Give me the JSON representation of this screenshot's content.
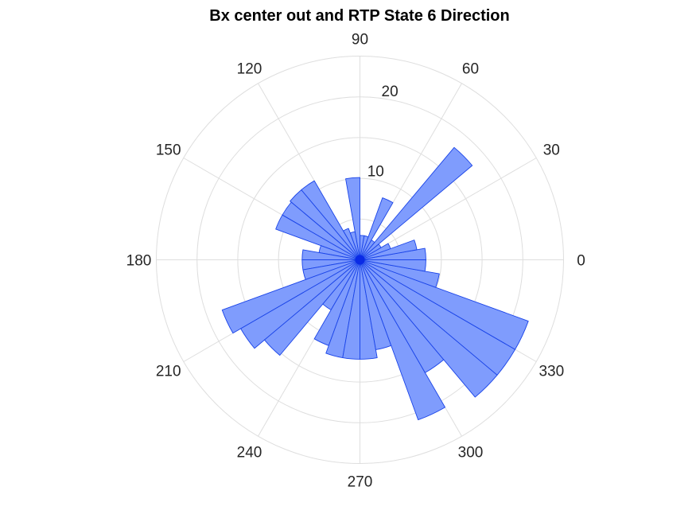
{
  "chart_data": {
    "type": "polar-histogram",
    "title": "Bx  center out and RTP State 6 Direction",
    "angle_unit": "degrees",
    "bin_width_deg": 10,
    "angle_ticks": [
      "0",
      "30",
      "60",
      "90",
      "120",
      "150",
      "180",
      "210",
      "240",
      "270",
      "300",
      "330"
    ],
    "radial_ticks": [
      "10",
      "20"
    ],
    "rlim": [
      0,
      25
    ],
    "grid": true,
    "bar_fill": "#7f9cfd",
    "bar_edge": "#1a44e8",
    "center_dot": "#0a2ae6",
    "grid_color": "#dedede",
    "bins": [
      {
        "start": 0,
        "end": 10,
        "value": 8.1
      },
      {
        "start": 10,
        "end": 20,
        "value": 7.1
      },
      {
        "start": 20,
        "end": 30,
        "value": 4.0
      },
      {
        "start": 30,
        "end": 40,
        "value": 3.0
      },
      {
        "start": 40,
        "end": 50,
        "value": 18.0
      },
      {
        "start": 50,
        "end": 60,
        "value": 2.8
      },
      {
        "start": 60,
        "end": 70,
        "value": 8.1
      },
      {
        "start": 70,
        "end": 80,
        "value": 3.0
      },
      {
        "start": 80,
        "end": 90,
        "value": 3.0
      },
      {
        "start": 90,
        "end": 100,
        "value": 10.1
      },
      {
        "start": 100,
        "end": 110,
        "value": 3.5
      },
      {
        "start": 110,
        "end": 120,
        "value": 4.1
      },
      {
        "start": 120,
        "end": 130,
        "value": 11.2
      },
      {
        "start": 130,
        "end": 140,
        "value": 11.2
      },
      {
        "start": 140,
        "end": 150,
        "value": 11.0
      },
      {
        "start": 150,
        "end": 160,
        "value": 11.0
      },
      {
        "start": 160,
        "end": 170,
        "value": 5.1
      },
      {
        "start": 170,
        "end": 180,
        "value": 7.1
      },
      {
        "start": 180,
        "end": 190,
        "value": 7.1
      },
      {
        "start": 190,
        "end": 200,
        "value": 7.1
      },
      {
        "start": 200,
        "end": 210,
        "value": 18.0
      },
      {
        "start": 210,
        "end": 220,
        "value": 16.9
      },
      {
        "start": 220,
        "end": 230,
        "value": 15.3
      },
      {
        "start": 230,
        "end": 240,
        "value": 7.1
      },
      {
        "start": 240,
        "end": 250,
        "value": 11.2
      },
      {
        "start": 250,
        "end": 260,
        "value": 12.2
      },
      {
        "start": 260,
        "end": 270,
        "value": 12.2
      },
      {
        "start": 270,
        "end": 280,
        "value": 12.2
      },
      {
        "start": 280,
        "end": 290,
        "value": 11.2
      },
      {
        "start": 290,
        "end": 300,
        "value": 20.9
      },
      {
        "start": 300,
        "end": 310,
        "value": 16.0
      },
      {
        "start": 310,
        "end": 320,
        "value": 22.0
      },
      {
        "start": 320,
        "end": 330,
        "value": 22.0
      },
      {
        "start": 330,
        "end": 340,
        "value": 22.0
      },
      {
        "start": 340,
        "end": 350,
        "value": 9.9
      },
      {
        "start": 350,
        "end": 360,
        "value": 8.1
      }
    ]
  }
}
